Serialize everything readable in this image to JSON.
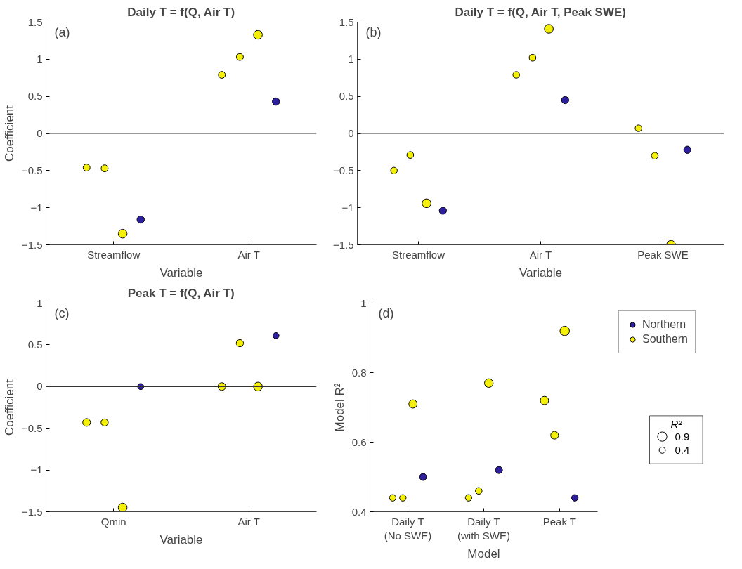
{
  "chart_data": [
    {
      "type": "bubble",
      "title": "Daily T = f(Q, Air T)",
      "xlabel": "Variable",
      "ylabel": "Coefficient",
      "annotations": [
        "(a)"
      ],
      "categories": [
        "Streamflow",
        "Air T"
      ],
      "ylim": [
        -1.5,
        1.5
      ],
      "yticks": [
        {
          "value": -1.5,
          "label": "−1.5"
        },
        {
          "value": -1,
          "label": "−1"
        },
        {
          "value": -0.5,
          "label": "−0.5"
        },
        0,
        0.5,
        1,
        1.5
      ],
      "ref_lines": [
        {
          "axis": "y",
          "value": 0,
          "color": "#333333"
        }
      ],
      "marker": "circle",
      "series": [
        {
          "color": "#f5f00a",
          "values": [
            -0.46,
            0.79
          ],
          "sizes": [
            0.62,
            0.62
          ]
        },
        {
          "color": "#f5f00a",
          "values": [
            -0.47,
            1.03
          ],
          "sizes": [
            0.62,
            0.62
          ]
        },
        {
          "color": "#f5f00a",
          "values": [
            -1.35,
            1.33
          ],
          "sizes": [
            1,
            1
          ]
        },
        {
          "color": "#2e1fa0",
          "values": [
            -1.16,
            0.43
          ],
          "sizes": [
            0.7,
            0.7
          ]
        }
      ]
    },
    {
      "type": "bubble",
      "title": "Daily T = f(Q, Air T, Peak SWE)",
      "xlabel": "Variable",
      "annotations": [
        "(b)"
      ],
      "categories": [
        "Streamflow",
        "Air T",
        "Peak SWE"
      ],
      "ylim": [
        -1.5,
        1.5
      ],
      "yticks": [
        {
          "value": -1.5,
          "label": "−1.5"
        },
        {
          "value": -1,
          "label": "−1"
        },
        {
          "value": -0.5,
          "label": "−0.5"
        },
        0,
        0.5,
        1,
        1.5
      ],
      "ref_lines": [
        {
          "axis": "y",
          "value": 0,
          "color": "#333333"
        }
      ],
      "marker": "circle",
      "series": [
        {
          "color": "#f5f00a",
          "values": [
            -0.5,
            0.79,
            0.07
          ],
          "sizes": [
            0.57,
            0.57,
            0.57
          ]
        },
        {
          "color": "#f5f00a",
          "values": [
            -0.29,
            1.02,
            -0.3
          ],
          "sizes": [
            0.6,
            0.6,
            0.6
          ]
        },
        {
          "color": "#f5f00a",
          "values": [
            -0.94,
            1.41,
            -1.5
          ],
          "sizes": [
            1,
            1,
            1
          ]
        },
        {
          "color": "#2e1fa0",
          "values": [
            -1.04,
            0.45,
            -0.22
          ],
          "sizes": [
            0.68,
            0.68,
            0.68
          ]
        }
      ]
    },
    {
      "type": "bubble",
      "title": "Peak T = f(Q, Air T)",
      "xlabel": "Variable",
      "ylabel": "Coefficient",
      "annotations": [
        "(c)"
      ],
      "categories": [
        "Qmin",
        "Air T"
      ],
      "ylim": [
        -1.5,
        1
      ],
      "yticks": [
        {
          "value": -1.5,
          "label": "−1.5"
        },
        {
          "value": -1,
          "label": "−1"
        },
        {
          "value": -0.5,
          "label": "−0.5"
        },
        0,
        0.5,
        1
      ],
      "ref_lines": [
        {
          "axis": "y",
          "value": 0,
          "color": "#333333"
        }
      ],
      "marker": "circle",
      "series": [
        {
          "color": "#f5f00a",
          "values": [
            -0.43,
            0
          ],
          "sizes": [
            0.78,
            0.78
          ]
        },
        {
          "color": "#f5f00a",
          "values": [
            -0.43,
            0.52
          ],
          "sizes": [
            0.67,
            0.67
          ]
        },
        {
          "color": "#f5f00a",
          "values": [
            -1.45,
            0
          ],
          "sizes": [
            1,
            1
          ]
        },
        {
          "color": "#2e1fa0",
          "values": [
            0,
            0.61
          ],
          "sizes": [
            0.48,
            0.48
          ]
        }
      ]
    },
    {
      "type": "bubble",
      "xlabel": "Model",
      "ylabel": "Model R²",
      "annotations": [
        "(d)"
      ],
      "legend": "right",
      "legend_title": "R²",
      "size_legend": [
        0.9,
        0.4
      ],
      "categories": [
        "Daily T\n(No SWE)",
        "Daily T\n(with SWE)",
        "Peak T"
      ],
      "ylim": [
        0.4,
        1
      ],
      "yticks": [
        0.4,
        0.6,
        0.8,
        1
      ],
      "marker": "circle",
      "series": [
        {
          "color": "#f5f00a",
          "values": [
            0.44,
            0.44,
            0.72
          ],
          "sizes": [
            0.44,
            0.44,
            0.72
          ]
        },
        {
          "color": "#f5f00a",
          "values": [
            0.44,
            0.46,
            0.62
          ],
          "sizes": [
            0.44,
            0.46,
            0.62
          ]
        },
        {
          "name": "Southern",
          "color": "#f5f00a",
          "values": [
            0.71,
            0.77,
            0.92
          ],
          "sizes": [
            0.71,
            0.77,
            0.92
          ]
        },
        {
          "name": "Northern",
          "color": "#2e1fa0",
          "values": [
            0.5,
            0.52,
            0.44
          ],
          "sizes": [
            0.5,
            0.52,
            0.44
          ]
        }
      ]
    }
  ]
}
